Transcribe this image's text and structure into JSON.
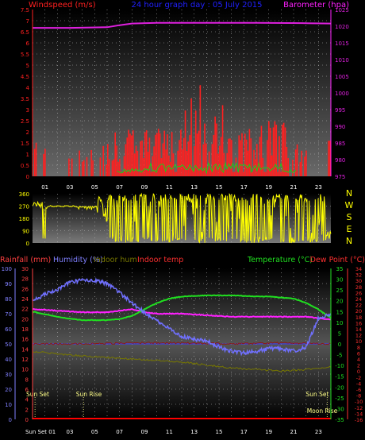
{
  "colors": {
    "background": "#000000",
    "wind": "#ff2020",
    "gust": "#ff0000",
    "wind_avg": "#18d018",
    "barometer": "#e020e0",
    "winddir": "#ffff00",
    "rain": "#ff0000",
    "humidity": "#7070ff",
    "indoor_hum": "#777700",
    "indoor_temp": "#8b1a1a",
    "temperature": "#20e020",
    "dewpoint": "#ff20ff",
    "title": "#2020ff",
    "grid": "#bbbbbb",
    "sun": "#ffff88",
    "axis_rain": "#ff4040",
    "axis_hum": "#8080ff",
    "axis_temp": "#20e020",
    "axis_dew": "#ff3030"
  },
  "header": {
    "left": "Windspeed (m/s)",
    "center": "24 hour graph day : 05 July 2015",
    "right": "Barometer (hpa)"
  },
  "panel1": {
    "wind_ticks": [
      "7.5",
      "7",
      "6.5",
      "6",
      "5.5",
      "5",
      "4.5",
      "4",
      "3.5",
      "3",
      "2.5",
      "2",
      "1.5",
      "1",
      "0.5",
      "0"
    ],
    "baro_ticks": [
      "1025",
      "1020",
      "1015",
      "1010",
      "1005",
      "1000",
      "995",
      "990",
      "985",
      "980",
      "975"
    ]
  },
  "panel2": {
    "dir_ticks": [
      "360",
      "270",
      "180",
      "90",
      "0"
    ],
    "compass": [
      "N",
      "W",
      "S",
      "E",
      "N"
    ]
  },
  "x_hours": [
    "01",
    "03",
    "05",
    "07",
    "09",
    "11",
    "13",
    "15",
    "17",
    "19",
    "21",
    "23"
  ],
  "bottom": {
    "legend": {
      "rain": "Rainfall (mm)",
      "humidity": "Humidity (%)",
      "indoor_hum": "Indoor hum",
      "indoor_temp": "Indoor temp",
      "temperature": "Temperature (°C)",
      "dewpoint": "Dew Point (°C)"
    },
    "hum_ticks": [
      "100",
      "90",
      "80",
      "70",
      "60",
      "50",
      "40",
      "30",
      "20",
      "10",
      "0"
    ],
    "rain_ticks": [
      "30",
      "28",
      "26",
      "24",
      "22",
      "20",
      "18",
      "16",
      "14",
      "12",
      "10",
      "8",
      "6",
      "4",
      "2",
      "0"
    ],
    "temp_ticks": [
      "35",
      "30",
      "25",
      "20",
      "15",
      "10",
      "5",
      "0",
      "-5",
      "-10",
      "-15",
      "-20",
      "-25",
      "-30",
      "-35"
    ],
    "dew_ticks": [
      "34",
      "32",
      "30",
      "28",
      "26",
      "24",
      "22",
      "20",
      "18",
      "16",
      "14",
      "12",
      "10",
      "8",
      "6",
      "4",
      "2",
      "0",
      "-2",
      "-4",
      "-6",
      "-8",
      "-10",
      "-12",
      "-14",
      "-16"
    ],
    "events": {
      "sun_set_left": "Sun Set",
      "sun_rise": "Sun Rise",
      "sun_set_right": "Sun Set",
      "moon_rise": "Moon Rise",
      "x_first_label": "Sun Set 01"
    }
  },
  "chart_data": [
    {
      "type": "bar",
      "title": "24 hour graph day : 05 July 2015",
      "ylabel": "Windspeed (m/s)",
      "ylim": [
        0,
        7.5
      ],
      "x": "hour of day 0–24",
      "series": [
        {
          "name": "Windspeed (m/s)",
          "description": "gust bars, mostly 0.5–2.5, peak ~4.1 near 13:30",
          "approx_peak": 4.1
        },
        {
          "name": "Barometer (hpa)",
          "axis": "right",
          "ylim": [
            975,
            1025
          ],
          "x": [
            0,
            3,
            6,
            7,
            8,
            10,
            14,
            18,
            22,
            24
          ],
          "values": [
            1019.5,
            1019.5,
            1019.7,
            1020.3,
            1020.8,
            1021.0,
            1021.0,
            1021.0,
            1020.9,
            1020.8
          ]
        }
      ]
    },
    {
      "type": "scatter",
      "ylabel": "Wind direction",
      "ylim": [
        0,
        360
      ],
      "series": [
        {
          "name": "Wind direction",
          "description": "~270 from 0–5h, then variable 0–360 from 5h to 24h"
        }
      ]
    },
    {
      "type": "line",
      "series": [
        {
          "name": "Humidity (%)",
          "axis": "left",
          "ylim": [
            0,
            100
          ],
          "x": [
            0,
            1,
            2,
            3,
            4,
            5,
            6,
            7,
            8,
            9,
            10,
            11,
            12,
            13,
            14,
            15,
            16,
            17,
            18,
            19,
            20,
            21,
            22,
            23,
            24
          ],
          "values": [
            78,
            83,
            86,
            91,
            92,
            92,
            90,
            84,
            77,
            71,
            65,
            60,
            55,
            53,
            52,
            48,
            45,
            44,
            45,
            47,
            47,
            45,
            48,
            67,
            70
          ]
        },
        {
          "name": "Temperature (°C)",
          "axis": "right",
          "ylim": [
            -35,
            35
          ],
          "x": [
            0,
            2,
            4,
            6,
            7,
            8,
            9,
            10,
            11,
            12,
            14,
            16,
            18,
            19,
            20,
            21,
            22,
            23,
            24
          ],
          "values": [
            15,
            12.5,
            11,
            11,
            11.5,
            13,
            16,
            19,
            21,
            22,
            22.5,
            22.5,
            22,
            22,
            21.5,
            21,
            19,
            16,
            12
          ]
        },
        {
          "name": "Dew Point (°C)",
          "axis": "right2",
          "ylim": [
            -16,
            34
          ],
          "x": [
            0,
            2,
            4,
            6,
            7,
            8,
            9,
            10,
            12,
            14,
            16,
            18,
            20,
            22,
            23,
            24
          ],
          "values": [
            20.5,
            20,
            19.5,
            19.5,
            20,
            20.5,
            19.5,
            19,
            19,
            18.5,
            18,
            18,
            18,
            18,
            17.5,
            17
          ]
        },
        {
          "name": "Indoor hum",
          "axis": "left",
          "x": [
            0,
            4,
            8,
            12,
            16,
            20,
            22,
            24
          ],
          "values": [
            45,
            42,
            40,
            38,
            34,
            32,
            33,
            35
          ]
        },
        {
          "name": "Indoor temp",
          "axis": "right",
          "x": [
            0,
            4,
            8,
            12,
            16,
            20,
            24
          ],
          "values": [
            0,
            0,
            0.5,
            0.5,
            0,
            0.5,
            0
          ]
        },
        {
          "name": "Rainfall (mm)",
          "axis": "left2",
          "ylim": [
            0,
            30
          ],
          "values": [
            0
          ]
        }
      ]
    }
  ]
}
